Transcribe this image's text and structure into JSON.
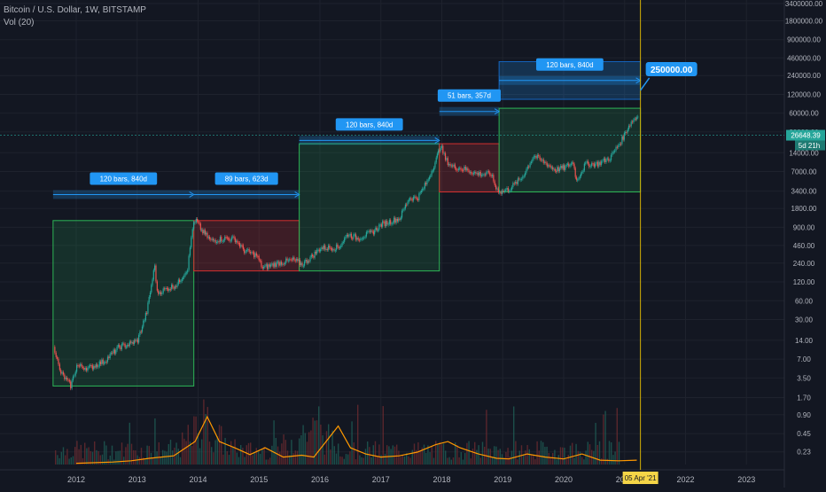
{
  "header": {
    "symbol_line": "Bitcoin / U.S. Dollar, 1W, BITSTAMP",
    "volume_line": "Vol (20)"
  },
  "colors": {
    "background": "#131722",
    "grid": "#1e222d",
    "axis_text": "#b2b5be",
    "bull_zone": "#26a65b",
    "bear_zone": "#e53935",
    "measure_blue": "#2196f3",
    "price_line": "#26a69a",
    "volume_ma": "#ff9800",
    "crosshair": "#d4b106"
  },
  "chart_data": {
    "type": "candlestick",
    "title": "Bitcoin / U.S. Dollar, 1W, BITSTAMP",
    "y_scale": "log",
    "ylim": [
      0.2,
      3400000
    ],
    "y_ticks": [
      0.23,
      0.45,
      0.9,
      1.7,
      3.5,
      7.0,
      14.0,
      30.0,
      60.0,
      120.0,
      240.0,
      460.0,
      900.0,
      1800.0,
      3400.0,
      7000.0,
      14000.0,
      30000.0,
      60000.0,
      120000.0,
      240000.0,
      460000.0,
      900000.0,
      1800000.0,
      3400000.0
    ],
    "x_ticks": [
      "2012",
      "2013",
      "2014",
      "2015",
      "2016",
      "2017",
      "2018",
      "2019",
      "2020",
      "2021",
      "2022",
      "2023"
    ],
    "x_tick_years": [
      2012,
      2013,
      2014,
      2015,
      2016,
      2017,
      2018,
      2019,
      2020,
      2021,
      2022,
      2023
    ],
    "price_path": [
      [
        2011.62,
        12
      ],
      [
        2011.72,
        4.5
      ],
      [
        2011.9,
        2.6
      ],
      [
        2012.0,
        5.5
      ],
      [
        2012.2,
        5.0
      ],
      [
        2012.45,
        6.5
      ],
      [
        2012.7,
        11
      ],
      [
        2012.85,
        12
      ],
      [
        2013.0,
        14
      ],
      [
        2013.15,
        40
      ],
      [
        2013.28,
        220
      ],
      [
        2013.32,
        80
      ],
      [
        2013.5,
        95
      ],
      [
        2013.65,
        110
      ],
      [
        2013.82,
        200
      ],
      [
        2013.9,
        900
      ],
      [
        2013.96,
        1150
      ],
      [
        2014.05,
        800
      ],
      [
        2014.2,
        550
      ],
      [
        2014.45,
        600
      ],
      [
        2014.6,
        580
      ],
      [
        2014.75,
        380
      ],
      [
        2014.95,
        320
      ],
      [
        2015.05,
        200
      ],
      [
        2015.3,
        240
      ],
      [
        2015.55,
        270
      ],
      [
        2015.7,
        230
      ],
      [
        2015.85,
        300
      ],
      [
        2016.0,
        420
      ],
      [
        2016.3,
        430
      ],
      [
        2016.45,
        700
      ],
      [
        2016.6,
        600
      ],
      [
        2016.85,
        740
      ],
      [
        2017.0,
        1000
      ],
      [
        2017.3,
        1250
      ],
      [
        2017.45,
        2600
      ],
      [
        2017.6,
        2700
      ],
      [
        2017.75,
        4800
      ],
      [
        2017.9,
        11000
      ],
      [
        2017.97,
        18500
      ],
      [
        2018.05,
        11000
      ],
      [
        2018.15,
        8500
      ],
      [
        2018.4,
        7500
      ],
      [
        2018.55,
        6500
      ],
      [
        2018.8,
        6300
      ],
      [
        2018.88,
        3800
      ],
      [
        2018.96,
        3300
      ],
      [
        2019.1,
        3700
      ],
      [
        2019.3,
        5500
      ],
      [
        2019.5,
        12500
      ],
      [
        2019.7,
        9500
      ],
      [
        2019.85,
        7500
      ],
      [
        2020.0,
        8000
      ],
      [
        2020.15,
        9800
      ],
      [
        2020.2,
        5000
      ],
      [
        2020.35,
        9200
      ],
      [
        2020.55,
        9300
      ],
      [
        2020.75,
        11500
      ],
      [
        2020.95,
        23000
      ],
      [
        2021.06,
        38000
      ],
      [
        2021.14,
        48000
      ],
      [
        2021.21,
        53000
      ]
    ],
    "zones": [
      {
        "kind": "bull",
        "x0": 2011.62,
        "x1": 2013.93,
        "y0": 2.6,
        "y1": 1150
      },
      {
        "kind": "bear",
        "x0": 2013.93,
        "x1": 2015.66,
        "y0": 180,
        "y1": 1150
      },
      {
        "kind": "bull",
        "x0": 2015.66,
        "x1": 2017.96,
        "y0": 180,
        "y1": 19500
      },
      {
        "kind": "bear",
        "x0": 2017.96,
        "x1": 2018.94,
        "y0": 3300,
        "y1": 19500
      },
      {
        "kind": "bull",
        "x0": 2018.94,
        "x1": 2021.26,
        "y0": 3300,
        "y1": 72000
      },
      {
        "kind": "target",
        "x0": 2018.94,
        "x1": 2021.26,
        "y0": 100000,
        "y1": 400000
      }
    ],
    "measures": [
      {
        "label": "120 bars, 840d",
        "x0": 2011.62,
        "x1": 2013.93,
        "y": 3000
      },
      {
        "label": "89 bars, 623d",
        "x0": 2013.93,
        "x1": 2015.66,
        "y": 3000
      },
      {
        "label": "120 bars, 840d",
        "x0": 2015.66,
        "x1": 2017.96,
        "y": 22000
      },
      {
        "label": "51 bars, 357d",
        "x0": 2017.96,
        "x1": 2018.94,
        "y": 64000
      },
      {
        "label": "120 bars, 840d",
        "x0": 2018.94,
        "x1": 2021.26,
        "y": 200000
      }
    ],
    "target_label": "250000.00",
    "current_price": 26648.39,
    "current_price_label": "26648.39",
    "countdown_label": "5d 21h",
    "crosshair_date": "05 Apr '21",
    "crosshair_year": 2021.26,
    "volume_ma_path": [
      [
        2012.0,
        0.2
      ],
      [
        2012.6,
        0.22
      ],
      [
        2012.9,
        0.24
      ],
      [
        2013.2,
        0.28
      ],
      [
        2013.6,
        0.32
      ],
      [
        2013.95,
        0.55
      ],
      [
        2014.15,
        0.95
      ],
      [
        2014.35,
        0.55
      ],
      [
        2014.6,
        0.45
      ],
      [
        2014.85,
        0.34
      ],
      [
        2015.1,
        0.45
      ],
      [
        2015.4,
        0.3
      ],
      [
        2015.7,
        0.33
      ],
      [
        2015.9,
        0.3
      ],
      [
        2016.1,
        0.55
      ],
      [
        2016.3,
        0.8
      ],
      [
        2016.5,
        0.45
      ],
      [
        2016.75,
        0.35
      ],
      [
        2017.0,
        0.3
      ],
      [
        2017.3,
        0.32
      ],
      [
        2017.6,
        0.38
      ],
      [
        2017.9,
        0.5
      ],
      [
        2018.1,
        0.55
      ],
      [
        2018.3,
        0.45
      ],
      [
        2018.6,
        0.35
      ],
      [
        2018.9,
        0.28
      ],
      [
        2019.1,
        0.27
      ],
      [
        2019.4,
        0.35
      ],
      [
        2019.7,
        0.3
      ],
      [
        2020.0,
        0.27
      ],
      [
        2020.3,
        0.35
      ],
      [
        2020.6,
        0.25
      ],
      [
        2020.9,
        0.24
      ],
      [
        2021.2,
        0.25
      ]
    ]
  }
}
